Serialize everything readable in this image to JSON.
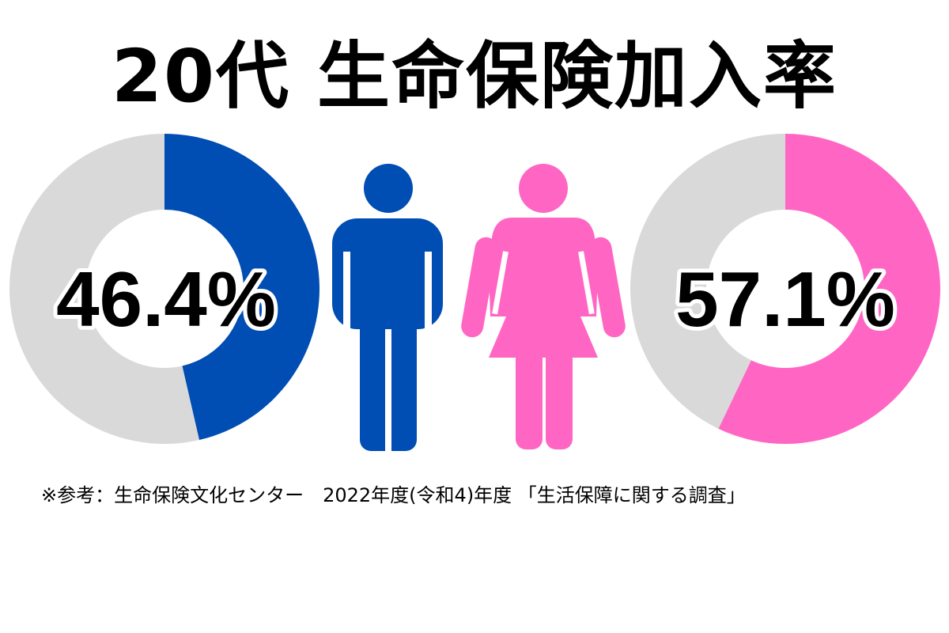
{
  "title": "20代 生命保険加入率",
  "source_note": "※参考：生命保険文化センター　2022年度(令和4)年度 「生活保障に関する調査」",
  "colors": {
    "male": "#004db3",
    "female": "#ff66c4",
    "remainder": "#d9d9d9"
  },
  "icons": {
    "male": "male-person-icon",
    "female": "female-person-icon"
  },
  "chart_data": [
    {
      "type": "pie",
      "variant": "donut",
      "values": [
        46.4,
        53.6
      ],
      "value_label": "46.4%",
      "color": "#004db3"
    },
    {
      "type": "pie",
      "variant": "donut",
      "values": [
        57.1,
        42.9
      ],
      "value_label": "57.1%",
      "color": "#ff66c4"
    }
  ]
}
